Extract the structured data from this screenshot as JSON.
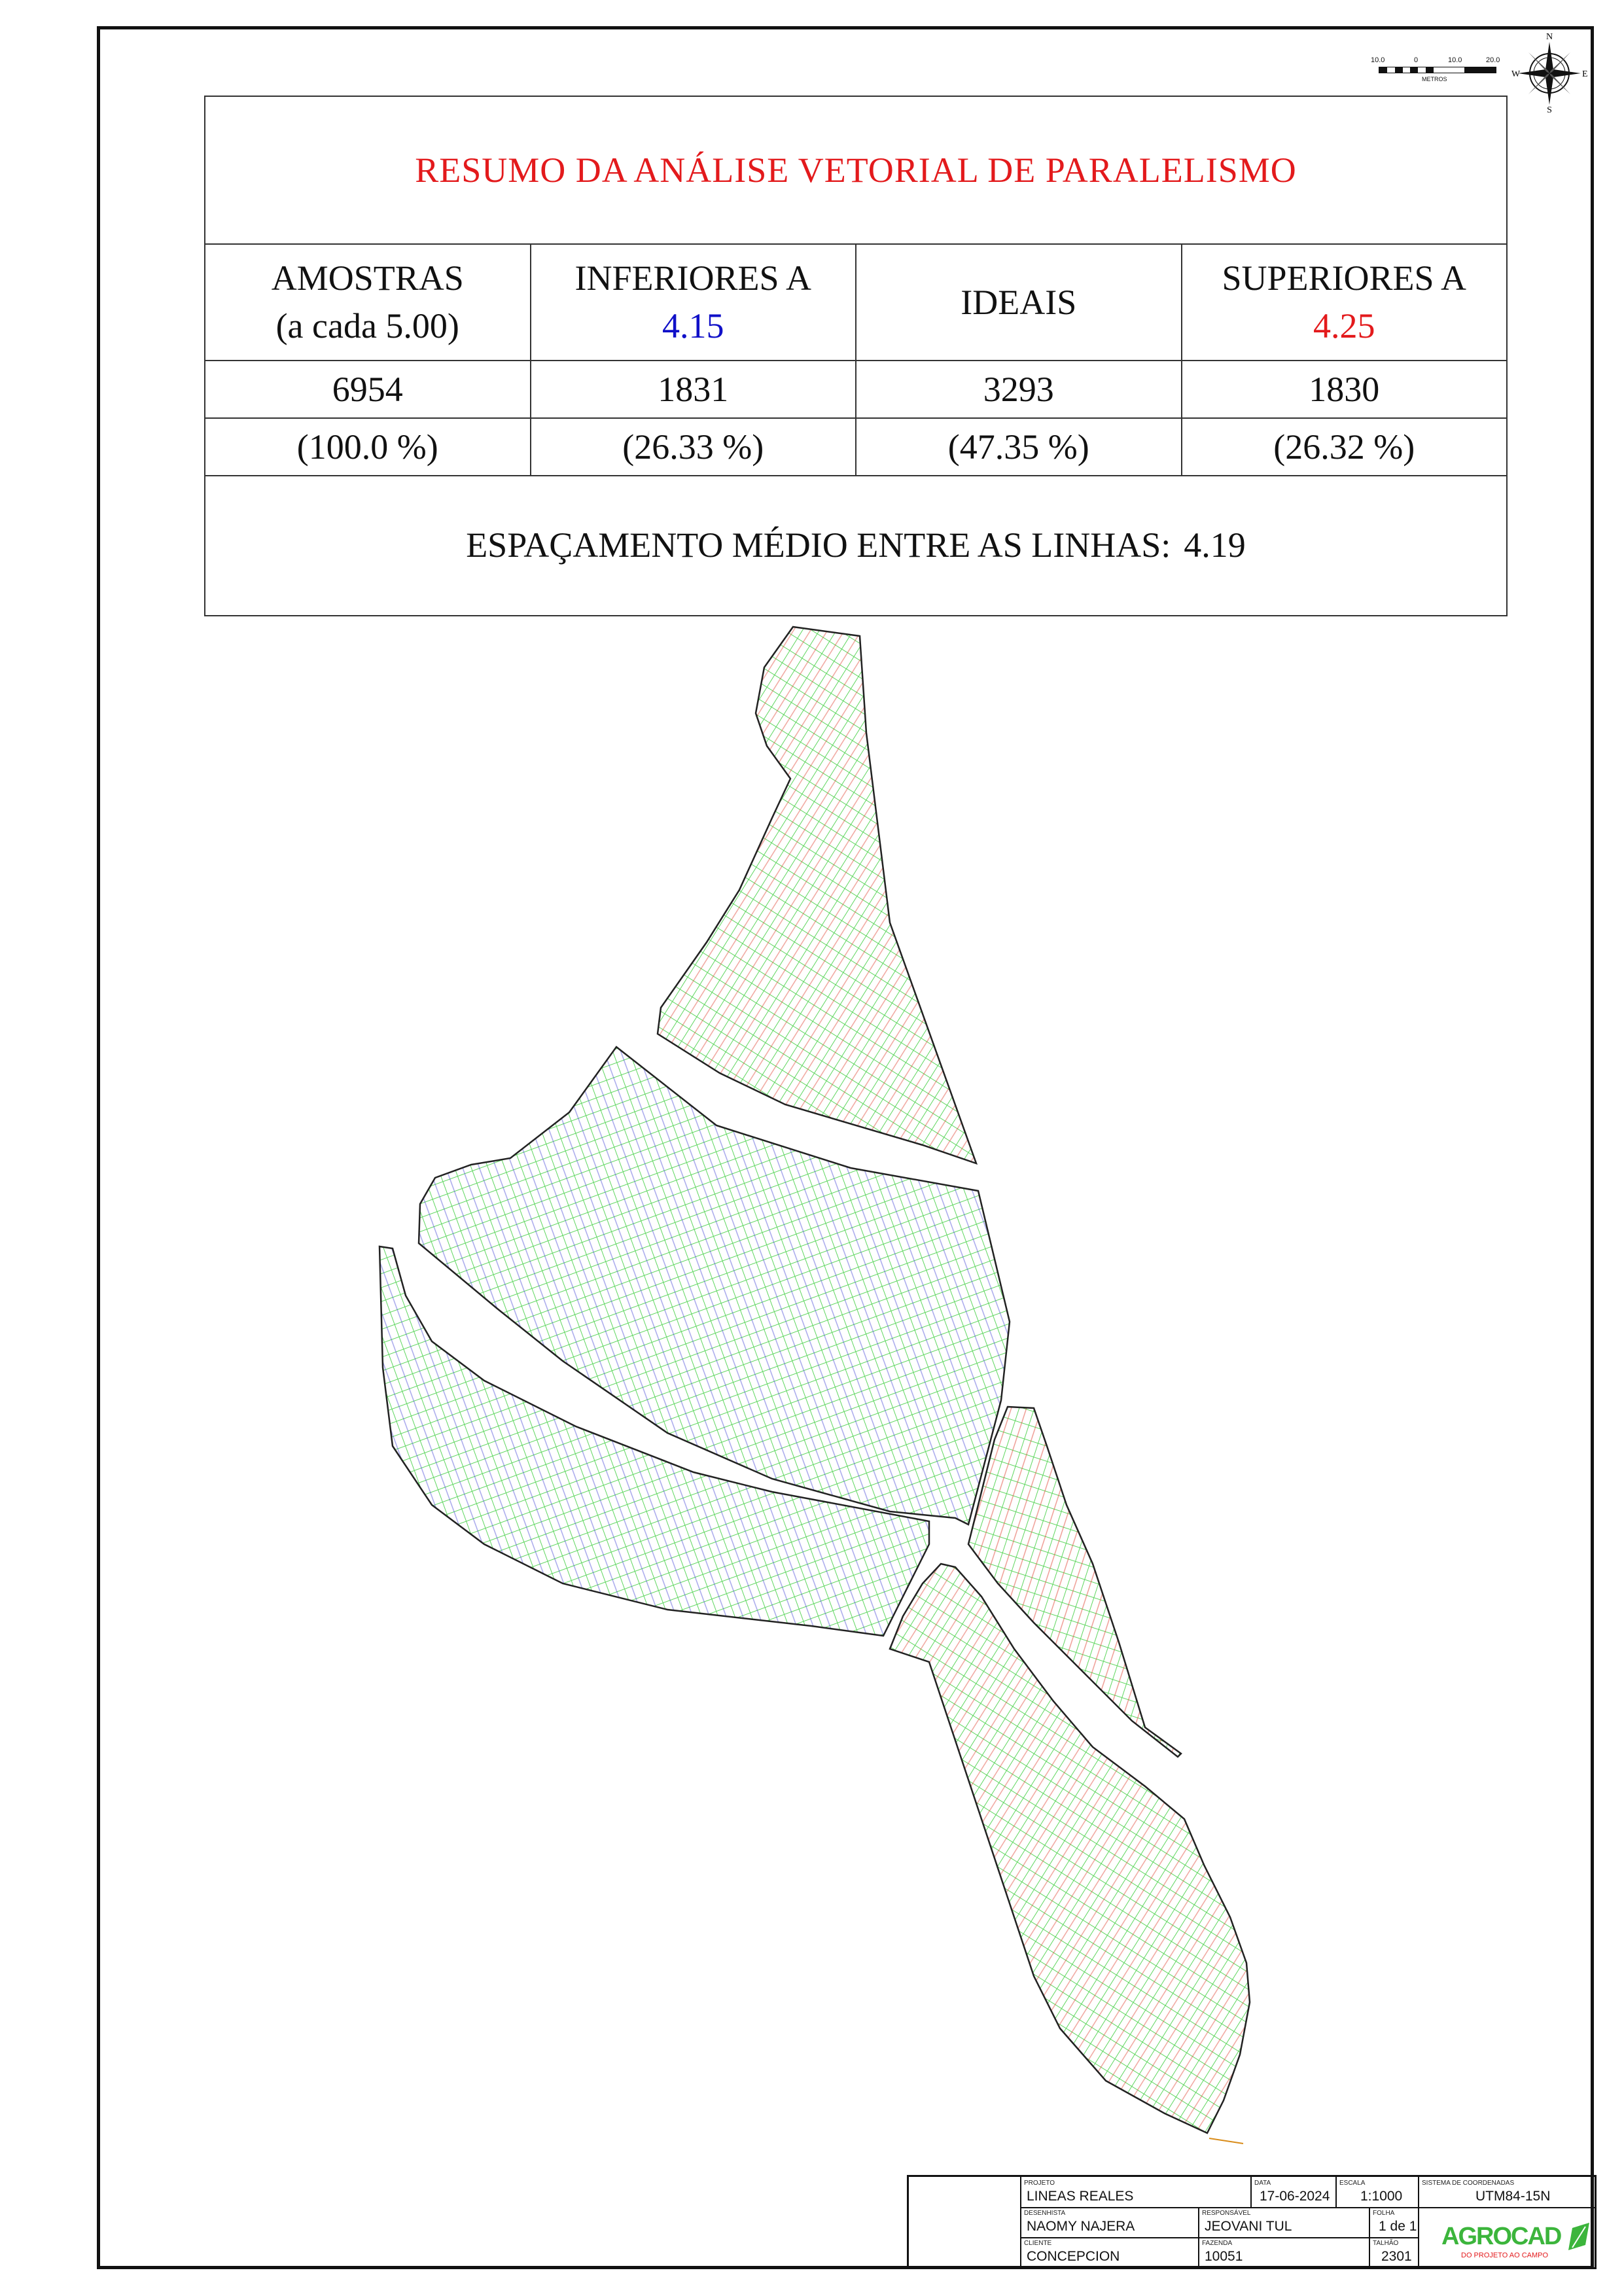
{
  "summary": {
    "title": "RESUMO DA ANÁLISE VETORIAL DE PARALELISMO",
    "headers": {
      "samples_line1": "AMOSTRAS",
      "samples_line2": "(a cada 5.00)",
      "lower_label": "INFERIORES A",
      "lower_value": "4.15",
      "ideal_label": "IDEAIS",
      "upper_label": "SUPERIORES A",
      "upper_value": "4.25"
    },
    "counts": {
      "samples": "6954",
      "lower": "1831",
      "ideal": "3293",
      "upper": "1830"
    },
    "percents": {
      "samples": "(100.0 %)",
      "lower": "(26.33 %)",
      "ideal": "(47.35 %)",
      "upper": "(26.32 %)"
    },
    "spacing_label": "ESPAÇAMENTO MÉDIO ENTRE AS LINHAS:",
    "spacing_value": "4.19"
  },
  "scale_bar": {
    "labels": [
      "10.0",
      "0",
      "10.0",
      "20.0"
    ],
    "units": "METROS"
  },
  "compass": {
    "n": "N",
    "s": "S",
    "e": "E",
    "w": "W"
  },
  "title_block": {
    "projeto_caption": "PROJETO",
    "projeto": "LINEAS REALES",
    "data_caption": "DATA",
    "data": "17-06-2024",
    "escala_caption": "ESCALA",
    "escala": "1:1000",
    "sistema_caption": "SISTEMA DE COORDENADAS",
    "sistema": "UTM84-15N",
    "desenhista_caption": "DESENHISTA",
    "desenhista": "NAOMY NAJERA",
    "responsavel_caption": "RESPONSÁVEL",
    "responsavel": "JEOVANI TUL",
    "folha_caption": "FOLHA",
    "folha": "1 de 1",
    "cliente_caption": "CLIENTE",
    "cliente": "CONCEPCION",
    "fazenda_caption": "FAZENDA",
    "fazenda": "10051",
    "talhao_caption": "TALHÃO",
    "talhao": "2301",
    "logo_text": "AGROCAD",
    "logo_tagline": "DO PROJETO AO CAMPO"
  },
  "colors": {
    "lower": "#1010c8",
    "ideal": "#22e022",
    "upper": "#e31a1c",
    "title": "#e31a1c"
  }
}
